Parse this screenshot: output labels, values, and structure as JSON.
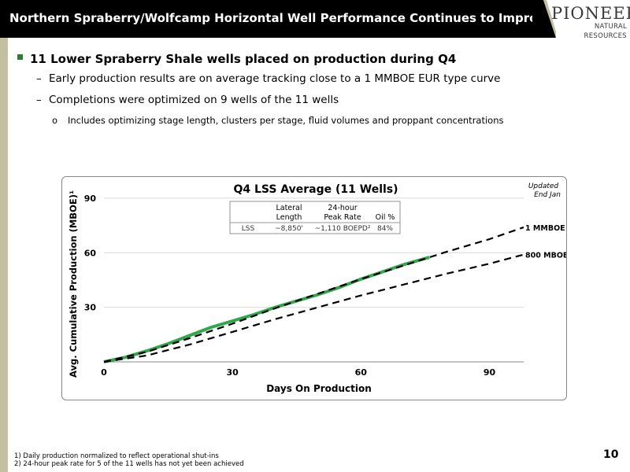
{
  "header": {
    "title": "Northern Spraberry/Wolfcamp Horizontal Well Performance Continues to Improve (cont.)"
  },
  "logo": {
    "main": "PIONEER",
    "sub": "NATURAL RESOURCES"
  },
  "bullets": {
    "b1": "11 Lower Spraberry Shale wells placed on production during Q4",
    "b2a": "Early production results are on average tracking close to a 1 MMBOE EUR type curve",
    "b2b": "Completions were optimized on 9 wells of the 11 wells",
    "b3": "Includes optimizing stage length, clusters per stage, fluid volumes and proppant concentrations"
  },
  "table": {
    "headers": [
      "",
      "Lateral Length",
      "24-hour Peak Rate",
      "Oil %"
    ],
    "row": [
      "LSS",
      "~8,850'",
      "~1,110 BOEPD²",
      "84%"
    ]
  },
  "chart_data": {
    "type": "line",
    "title": "Q4 LSS Average (11 Wells)",
    "annotation": "Updated End Jan",
    "xlabel": "Days On Production",
    "ylabel": "Avg. Cumulative Production (MBOE)¹",
    "xlim": [
      0,
      98
    ],
    "ylim": [
      0,
      93
    ],
    "xticks": [
      0,
      30,
      60,
      90
    ],
    "yticks": [
      30,
      60,
      90
    ],
    "grid": true,
    "series": [
      {
        "name": "LSS Average",
        "color": "#2ea84a",
        "style": "solid",
        "x": [
          0,
          5,
          10,
          15,
          20,
          25,
          30,
          35,
          40,
          45,
          50,
          55,
          60,
          65,
          70,
          76
        ],
        "y": [
          0,
          2.5,
          6,
          10,
          14.5,
          19,
          22.5,
          26,
          30,
          33.5,
          37,
          41,
          45.5,
          49.5,
          53.5,
          57.5
        ]
      },
      {
        "name": "1 MMBOE",
        "color": "#000000",
        "style": "dashed",
        "x": [
          0,
          10,
          20,
          30,
          40,
          50,
          60,
          70,
          80,
          90,
          98
        ],
        "y": [
          0,
          5.5,
          13,
          21,
          29.5,
          37.5,
          45.5,
          53,
          60.5,
          67.5,
          74
        ]
      },
      {
        "name": "800 MBOE",
        "color": "#000000",
        "style": "dashed",
        "x": [
          0,
          10,
          20,
          30,
          40,
          50,
          60,
          70,
          80,
          90,
          98
        ],
        "y": [
          0,
          3.5,
          9.5,
          16.5,
          23.5,
          30,
          36.5,
          42.5,
          48.5,
          54,
          59
        ]
      }
    ]
  },
  "footnotes": {
    "f1": "1)   Daily production normalized to reflect operational shut-ins",
    "f2": "2)   24-hour peak rate for 5 of the 11 wells has not yet been achieved"
  },
  "page_number": "10"
}
